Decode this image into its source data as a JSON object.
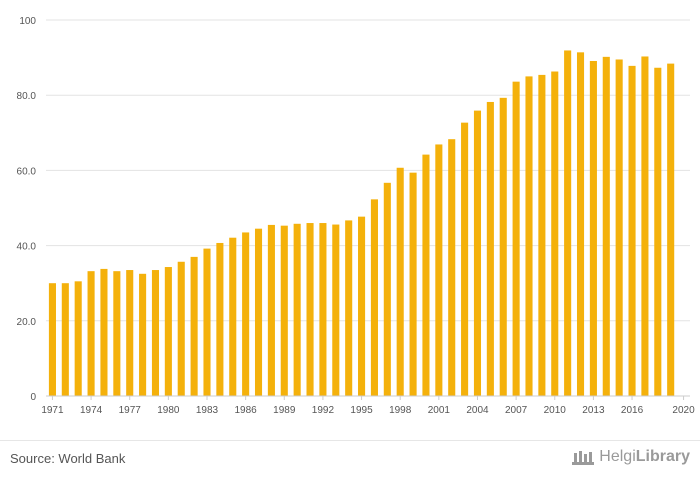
{
  "chart_data": {
    "type": "bar",
    "bar_color": "#F4B10B",
    "grid": true,
    "ylim": [
      0,
      100
    ],
    "y_ticks": [
      "0",
      "20.0",
      "40.0",
      "60.0",
      "80.0",
      "100"
    ],
    "y_tick_values": [
      0,
      20,
      40,
      60,
      80,
      100
    ],
    "x_tick_labels": [
      "1971",
      "1974",
      "1977",
      "1980",
      "1983",
      "1986",
      "1989",
      "1992",
      "1995",
      "1998",
      "2001",
      "2004",
      "2007",
      "2010",
      "2013",
      "2016",
      "2020"
    ],
    "categories": [
      "1971",
      "1972",
      "1973",
      "1974",
      "1975",
      "1976",
      "1977",
      "1978",
      "1979",
      "1980",
      "1981",
      "1982",
      "1983",
      "1984",
      "1985",
      "1986",
      "1987",
      "1988",
      "1989",
      "1990",
      "1991",
      "1992",
      "1993",
      "1994",
      "1995",
      "1996",
      "1997",
      "1998",
      "1999",
      "2000",
      "2001",
      "2002",
      "2003",
      "2004",
      "2005",
      "2006",
      "2007",
      "2008",
      "2009",
      "2010",
      "2011",
      "2012",
      "2013",
      "2014",
      "2015",
      "2016",
      "2017",
      "2018",
      "2019",
      "2020"
    ],
    "values": [
      30.0,
      30.0,
      30.5,
      33.2,
      33.8,
      33.2,
      33.5,
      32.5,
      33.5,
      34.3,
      35.7,
      37.0,
      39.2,
      40.7,
      42.1,
      43.5,
      44.5,
      45.5,
      45.3,
      45.8,
      46.0,
      46.0,
      45.6,
      46.7,
      47.7,
      52.3,
      56.7,
      60.7,
      59.4,
      64.2,
      66.9,
      68.3,
      72.7,
      75.9,
      78.2,
      79.3,
      83.6,
      85.0,
      85.4,
      86.3,
      91.9,
      91.4,
      89.1,
      90.2,
      89.5,
      87.8,
      90.3,
      87.3,
      88.4,
      null
    ]
  },
  "footer": {
    "source": "Source: World Bank",
    "brand_light": "Helgi",
    "brand_bold": "Library"
  }
}
